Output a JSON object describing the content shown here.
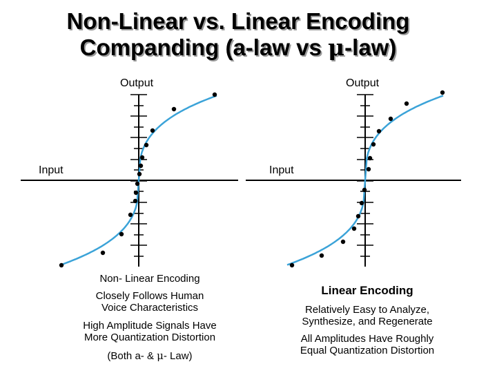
{
  "title": {
    "line1": "Non-Linear vs. Linear Encoding",
    "line2_prefix": "Companding (a-law vs ",
    "line2_mu": "μ",
    "line2_suffix": "-law)"
  },
  "left_graph": {
    "output_label": "Output",
    "input_label": "Input"
  },
  "right_graph": {
    "output_label": "Output",
    "input_label": "Input"
  },
  "left_captions": {
    "heading": "Non- Linear Encoding",
    "line1": "Closely Follows Human",
    "line2": "Voice Characteristics",
    "line3": "High Amplitude Signals Have",
    "line4": "More Quantization Distortion",
    "line5_prefix": "(Both a- & ",
    "line5_mu": "μ",
    "line5_suffix": "- Law)"
  },
  "right_captions": {
    "heading": "Linear Encoding",
    "line1": "Relatively Easy to Analyze,",
    "line2": "Synthesize, and Regenerate",
    "line3": "All Amplitudes Have Roughly",
    "line4": "Equal Quantization Distortion"
  },
  "colors": {
    "curve": "#3ba3d8",
    "axis": "#000000",
    "dot": "#000000"
  }
}
